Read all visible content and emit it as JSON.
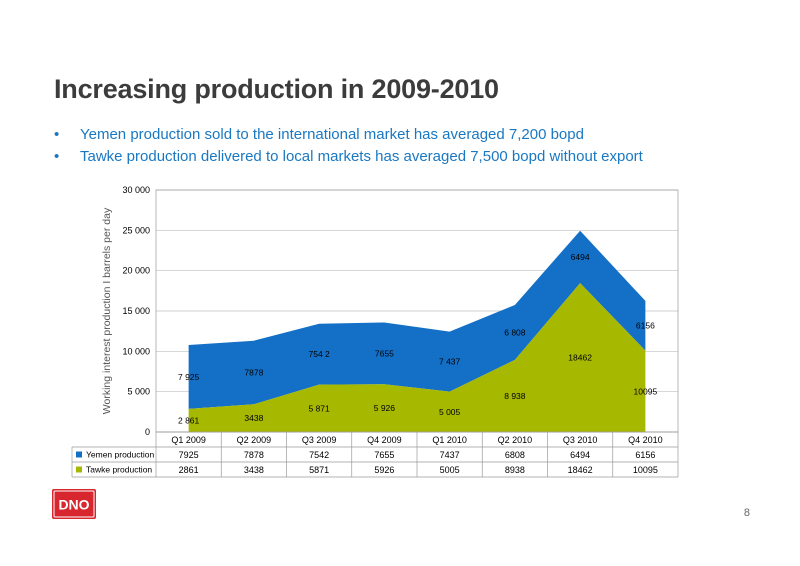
{
  "slide": {
    "title": "Increasing production in 2009-2010",
    "bullets": [
      "Yemen production sold to the international market has averaged 7,200 bopd",
      "Tawke production delivered to local markets has averaged 7,500 bopd without export"
    ],
    "bullet_marker": "•",
    "page_number": "8",
    "logo_text": "DNO"
  },
  "colors": {
    "yemen": "#1470C6",
    "tawke": "#A6B800",
    "title": "#3c3c3c",
    "bullet": "#1a78c2",
    "logo_red": "#d7262e"
  },
  "chart_data": {
    "type": "area",
    "stacked": true,
    "title": "",
    "xlabel": "",
    "ylabel": "Working interest production I barrels per day",
    "ylim": [
      0,
      30000
    ],
    "yticks": [
      0,
      5000,
      10000,
      15000,
      20000,
      25000,
      30000
    ],
    "ytick_labels": [
      "0",
      "5 000",
      "10 000",
      "15 000",
      "20 000",
      "25 000",
      "30 000"
    ],
    "grid": true,
    "legend": "data-table",
    "categories": [
      "Q1 2009",
      "Q2 2009",
      "Q3 2009",
      "Q4 2009",
      "Q1 2010",
      "Q2 2010",
      "Q3 2010",
      "Q4 2010"
    ],
    "series": [
      {
        "name": "Tawke production",
        "values": [
          2861,
          3438,
          5871,
          5926,
          5005,
          8938,
          18462,
          10095
        ],
        "chart_labels": [
          "2 861",
          "3438",
          "5 871",
          "5 926",
          "5 005",
          "8 938",
          "18462",
          "10095"
        ],
        "table_labels": [
          "2861",
          "3438",
          "5871",
          "5926",
          "5005",
          "8938",
          "18462",
          "10095"
        ]
      },
      {
        "name": "Yemen production",
        "values": [
          7925,
          7878,
          7542,
          7655,
          7437,
          6808,
          6494,
          6156
        ],
        "chart_labels": [
          "7 925",
          "7878",
          "754 2",
          "7655",
          "7 437",
          "6 808",
          "6494",
          "6156"
        ],
        "table_labels": [
          "7925",
          "7878",
          "7542",
          "7655",
          "7437",
          "6808",
          "6494",
          "6156"
        ]
      }
    ]
  }
}
